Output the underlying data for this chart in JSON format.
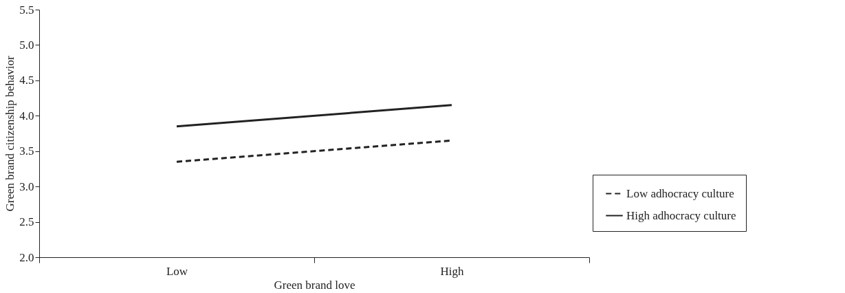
{
  "chart_data": {
    "type": "line",
    "xlabel": "Green brand love",
    "ylabel": "Green brand citizenship behavior",
    "categories": [
      "Low",
      "High"
    ],
    "series": [
      {
        "name": "Low adhocracy culture",
        "color": "#222222",
        "values": [
          3.35,
          3.65
        ],
        "line_style": "dashed"
      },
      {
        "name": "High adhocracy culture",
        "color": "#222222",
        "values": [
          3.85,
          4.15
        ],
        "line_style": "solid"
      }
    ],
    "ylim": [
      2.0,
      5.5
    ],
    "yticks": [
      {
        "value": 2.0,
        "label": "2.0"
      },
      {
        "value": 2.5,
        "label": "2.5"
      },
      {
        "value": 3.0,
        "label": "3.0"
      },
      {
        "value": 3.5,
        "label": "3.5"
      },
      {
        "value": 4.0,
        "label": "4.0"
      },
      {
        "value": 4.5,
        "label": "4.5"
      },
      {
        "value": 5.0,
        "label": "5.0"
      },
      {
        "value": 5.5,
        "label": "5.5"
      }
    ],
    "grid": false,
    "legend": "bottom right",
    "marker": "none"
  }
}
